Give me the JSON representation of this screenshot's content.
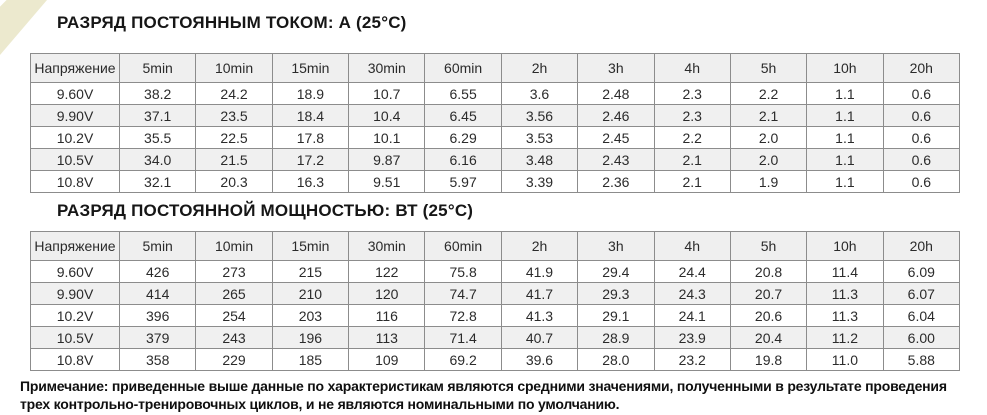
{
  "page": {
    "corner_accent_color": "#ECE9CE",
    "header_row_color": "#EFEFEF",
    "stripe_row_color": "#F0F0F0",
    "border_color": "#8C8C8C"
  },
  "section1": {
    "title": "РАЗРЯД ПОСТОЯННЫМ ТОКОМ: А (25°C)"
  },
  "section2": {
    "title": "РАЗРЯД ПОСТОЯННОЙ МОЩНОСТЬЮ: ВТ (25°C)"
  },
  "tables": [
    {
      "name": "discharge-constant-current-amps",
      "columns": [
        "Напряжение",
        "5min",
        "10min",
        "15min",
        "30min",
        "60min",
        "2h",
        "3h",
        "4h",
        "5h",
        "10h",
        "20h"
      ],
      "rows": [
        {
          "label": "9.60V",
          "values": [
            "38.2",
            "24.2",
            "18.9",
            "10.7",
            "6.55",
            "3.6",
            "2.48",
            "2.3",
            "2.2",
            "1.1",
            "0.6"
          ]
        },
        {
          "label": "9.90V",
          "values": [
            "37.1",
            "23.5",
            "18.4",
            "10.4",
            "6.45",
            "3.56",
            "2.46",
            "2.3",
            "2.1",
            "1.1",
            "0.6"
          ]
        },
        {
          "label": "10.2V",
          "values": [
            "35.5",
            "22.5",
            "17.8",
            "10.1",
            "6.29",
            "3.53",
            "2.45",
            "2.2",
            "2.0",
            "1.1",
            "0.6"
          ]
        },
        {
          "label": "10.5V",
          "values": [
            "34.0",
            "21.5",
            "17.2",
            "9.87",
            "6.16",
            "3.48",
            "2.43",
            "2.1",
            "2.0",
            "1.1",
            "0.6"
          ]
        },
        {
          "label": "10.8V",
          "values": [
            "32.1",
            "20.3",
            "16.3",
            "9.51",
            "5.97",
            "3.39",
            "2.36",
            "2.1",
            "1.9",
            "1.1",
            "0.6"
          ]
        }
      ]
    },
    {
      "name": "discharge-constant-power-watts",
      "columns": [
        "Напряжение",
        "5min",
        "10min",
        "15min",
        "30min",
        "60min",
        "2h",
        "3h",
        "4h",
        "5h",
        "10h",
        "20h"
      ],
      "rows": [
        {
          "label": "9.60V",
          "values": [
            "426",
            "273",
            "215",
            "122",
            "75.8",
            "41.9",
            "29.4",
            "24.4",
            "20.8",
            "11.4",
            "6.09"
          ]
        },
        {
          "label": "9.90V",
          "values": [
            "414",
            "265",
            "210",
            "120",
            "74.7",
            "41.7",
            "29.3",
            "24.3",
            "20.7",
            "11.3",
            "6.07"
          ]
        },
        {
          "label": "10.2V",
          "values": [
            "396",
            "254",
            "203",
            "116",
            "72.8",
            "41.3",
            "29.1",
            "24.1",
            "20.6",
            "11.3",
            "6.04"
          ]
        },
        {
          "label": "10.5V",
          "values": [
            "379",
            "243",
            "196",
            "113",
            "71.4",
            "40.7",
            "28.9",
            "23.9",
            "20.4",
            "11.2",
            "6.00"
          ]
        },
        {
          "label": "10.8V",
          "values": [
            "358",
            "229",
            "185",
            "109",
            "69.2",
            "39.6",
            "28.0",
            "23.2",
            "19.8",
            "11.0",
            "5.88"
          ]
        }
      ]
    }
  ],
  "note": {
    "line1": "Примечание: приведенные выше данные по характеристикам являются средними значениями, полученными в результате проведения",
    "line2": "трех контрольно-тренировочных циклов, и не являются номинальными по умолчанию."
  }
}
